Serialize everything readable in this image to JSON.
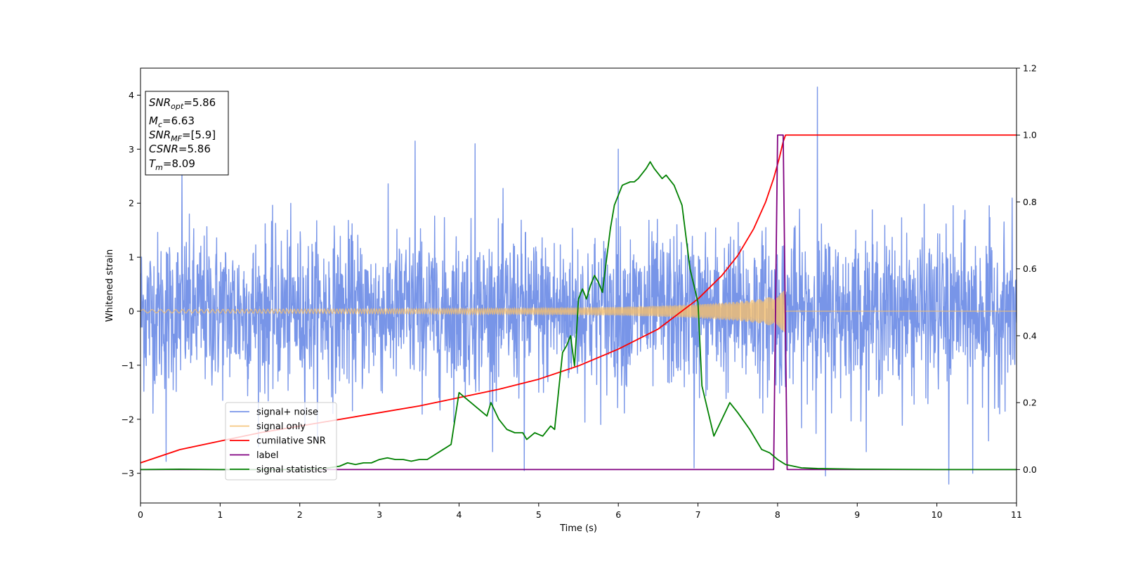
{
  "chart_data": {
    "type": "line",
    "title": "",
    "xlabel": "Time (s)",
    "ylabel": "Whitened strain",
    "y2label": "",
    "xlim": [
      0,
      11
    ],
    "ylim": [
      -3.55,
      4.5
    ],
    "y2lim": [
      -0.1,
      1.2
    ],
    "xticks": [
      0,
      1,
      2,
      3,
      4,
      5,
      6,
      7,
      8,
      9,
      10,
      11
    ],
    "yticks": [
      -3,
      -2,
      -1,
      0,
      1,
      2,
      3,
      4
    ],
    "y2ticks": [
      0.0,
      0.2,
      0.4,
      0.6,
      0.8,
      1.0,
      1.2
    ],
    "grid": false,
    "legend_position": "lower-left",
    "info_box": {
      "lines": [
        {
          "main": "SNR",
          "sub": "opt",
          "value": "=5.86"
        },
        {
          "main": "M",
          "sub": "c",
          "value": "=6.63"
        },
        {
          "main": "SNR",
          "sub": "MF",
          "value": "=[5.9]"
        },
        {
          "main": "CSNR",
          "sub": "",
          "value": "=5.86"
        },
        {
          "main": "T",
          "sub": "m",
          "value": "=8.09"
        }
      ]
    },
    "series": [
      {
        "name": "signal+ noise",
        "color": "#7895e8",
        "axis": "left",
        "description_points": {
          "noise_std": 0.72,
          "spikes": [
            [
              0.32,
              -2.78
            ],
            [
              0.52,
              2.7
            ],
            [
              3.45,
              3.15
            ],
            [
              4.2,
              3.1
            ],
            [
              4.82,
              -2.95
            ],
            [
              6.0,
              3.0
            ],
            [
              6.95,
              -2.9
            ],
            [
              8.5,
              4.15
            ],
            [
              8.6,
              -3.05
            ],
            [
              10.15,
              -3.2
            ],
            [
              10.45,
              -3.0
            ],
            [
              10.65,
              -2.4
            ]
          ]
        }
      },
      {
        "name": "signal only",
        "color": "#f5bf6e",
        "axis": "left",
        "envelope": {
          "x": [
            0,
            1,
            2,
            3,
            4,
            5,
            6,
            6.5,
            7,
            7.5,
            7.8,
            8.0,
            8.09,
            8.1,
            11
          ],
          "amp": [
            0.03,
            0.035,
            0.04,
            0.045,
            0.05,
            0.06,
            0.08,
            0.1,
            0.13,
            0.18,
            0.23,
            0.3,
            0.4,
            0.0,
            0.0
          ]
        }
      },
      {
        "name": "cumilative SNR",
        "color": "#ff0000",
        "axis": "right",
        "x": [
          0,
          0.5,
          1,
          1.5,
          2,
          2.5,
          3,
          3.5,
          4,
          4.5,
          5,
          5.5,
          6,
          6.5,
          7,
          7.3,
          7.5,
          7.7,
          7.85,
          7.95,
          8.02,
          8.07,
          8.1,
          11
        ],
        "y": [
          0.02,
          0.06,
          0.085,
          0.11,
          0.13,
          0.15,
          0.17,
          0.19,
          0.215,
          0.24,
          0.27,
          0.31,
          0.36,
          0.42,
          0.51,
          0.58,
          0.64,
          0.72,
          0.8,
          0.87,
          0.93,
          0.98,
          1.0,
          1.0
        ]
      },
      {
        "name": "label",
        "color": "#800080",
        "axis": "right",
        "x": [
          0,
          7.95,
          8.0,
          8.07,
          8.12,
          11
        ],
        "y": [
          0,
          0,
          1,
          1,
          0,
          0
        ]
      },
      {
        "name": "signal statistics",
        "color": "#008000",
        "axis": "right",
        "x": [
          0,
          0.5,
          1,
          1.5,
          2,
          2.3,
          2.5,
          2.6,
          2.7,
          2.8,
          2.9,
          3.0,
          3.1,
          3.2,
          3.3,
          3.4,
          3.5,
          3.6,
          3.7,
          3.8,
          3.9,
          4.0,
          4.05,
          4.15,
          4.25,
          4.35,
          4.4,
          4.5,
          4.6,
          4.7,
          4.8,
          4.85,
          4.95,
          5.05,
          5.15,
          5.2,
          5.3,
          5.35,
          5.4,
          5.45,
          5.5,
          5.55,
          5.6,
          5.65,
          5.7,
          5.75,
          5.8,
          5.9,
          5.95,
          6.05,
          6.15,
          6.2,
          6.25,
          6.35,
          6.4,
          6.45,
          6.55,
          6.6,
          6.7,
          6.8,
          6.9,
          7.0,
          7.05,
          7.15,
          7.2,
          7.3,
          7.4,
          7.5,
          7.65,
          7.8,
          7.9,
          8.0,
          8.1,
          8.3,
          8.5,
          9,
          10,
          11
        ],
        "y": [
          0.0,
          0.001,
          0.0,
          0.0,
          0.0,
          0.003,
          0.01,
          0.02,
          0.015,
          0.02,
          0.02,
          0.03,
          0.035,
          0.03,
          0.03,
          0.025,
          0.03,
          0.03,
          0.045,
          0.06,
          0.075,
          0.23,
          0.22,
          0.2,
          0.18,
          0.16,
          0.2,
          0.15,
          0.12,
          0.11,
          0.11,
          0.09,
          0.11,
          0.1,
          0.13,
          0.12,
          0.35,
          0.37,
          0.4,
          0.31,
          0.51,
          0.54,
          0.51,
          0.55,
          0.58,
          0.56,
          0.53,
          0.72,
          0.79,
          0.85,
          0.86,
          0.86,
          0.87,
          0.9,
          0.92,
          0.9,
          0.87,
          0.88,
          0.85,
          0.79,
          0.6,
          0.5,
          0.25,
          0.15,
          0.1,
          0.15,
          0.2,
          0.17,
          0.12,
          0.06,
          0.05,
          0.03,
          0.015,
          0.005,
          0.003,
          0.001,
          0.0,
          0.0
        ]
      }
    ]
  }
}
